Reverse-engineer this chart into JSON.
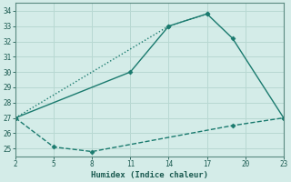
{
  "bg_color": "#d4ece8",
  "grid_color": "#b8d8d2",
  "line_color": "#1a7a6e",
  "xlabel": "Humidex (Indice chaleur)",
  "xlim": [
    2,
    23
  ],
  "ylim": [
    24.5,
    34.5
  ],
  "xticks": [
    2,
    5,
    8,
    11,
    14,
    17,
    20,
    23
  ],
  "yticks": [
    25,
    26,
    27,
    28,
    29,
    30,
    31,
    32,
    33,
    34
  ],
  "line1_x": [
    2,
    11,
    14,
    17,
    19,
    23
  ],
  "line1_y": [
    27,
    30,
    33,
    33.8,
    32.2,
    27
  ],
  "line1_style": "-",
  "line1_marker": "D",
  "line2_x": [
    2,
    14,
    17
  ],
  "line2_y": [
    27,
    33.0,
    33.8
  ],
  "line2_style": ":",
  "line2_marker": "D",
  "line3_x": [
    2,
    5,
    8,
    19,
    23
  ],
  "line3_y": [
    27,
    25.1,
    24.8,
    26.5,
    27
  ],
  "line3_style": "--",
  "line3_marker": "D"
}
